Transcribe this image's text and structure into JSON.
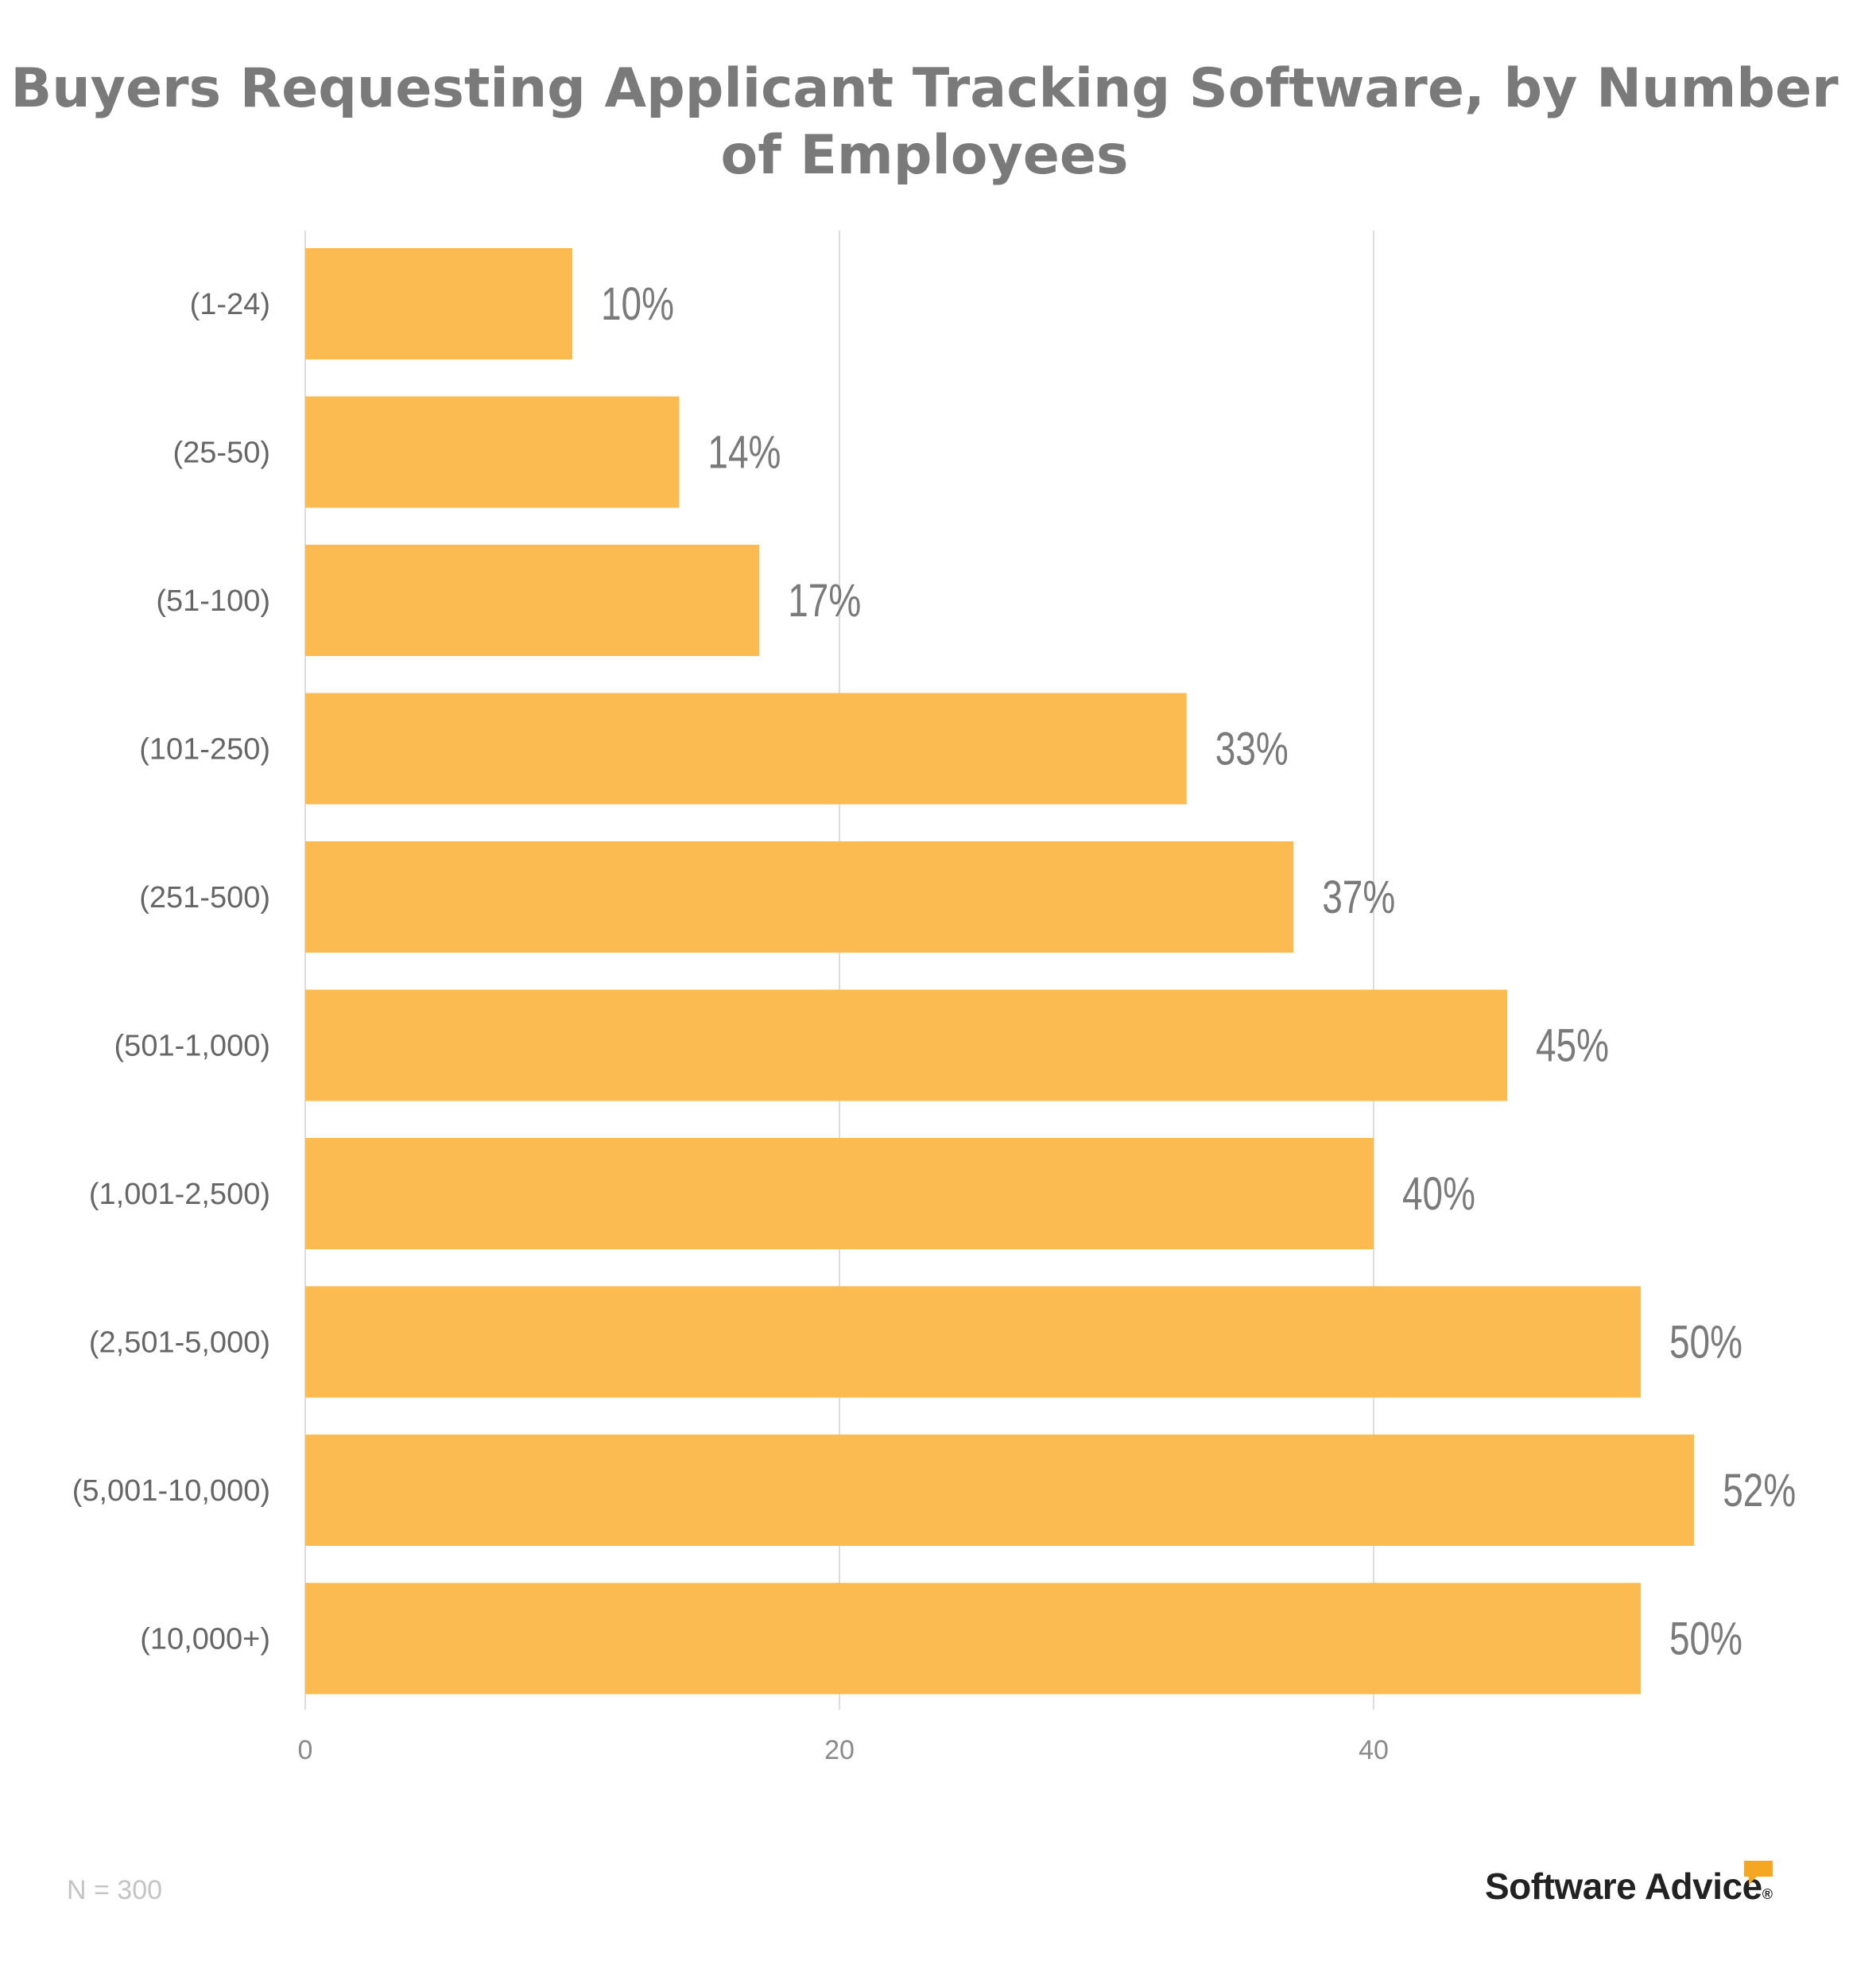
{
  "chart_data": {
    "type": "bar",
    "orientation": "horizontal",
    "title": "Buyers Requesting Applicant Tracking Software, by Number of Employees",
    "categories": [
      "(1-24)",
      "(25-50)",
      "(51-100)",
      "(101-250)",
      "(251-500)",
      "(501-1,000)",
      "(1,001-2,500)",
      "(2,501-5,000)",
      "(5,001-10,000)",
      "(10,000+)"
    ],
    "values": [
      10,
      14,
      17,
      33,
      37,
      45,
      40,
      50,
      52,
      50
    ],
    "value_labels": [
      "10%",
      "14%",
      "17%",
      "33%",
      "37%",
      "45%",
      "40%",
      "50%",
      "52%",
      "50%"
    ],
    "xticks": [
      "0",
      "20",
      "40"
    ],
    "xlim": [
      0,
      55
    ],
    "grid": true,
    "bar_color": "#fbbb51",
    "note": "N = 300"
  },
  "brand": {
    "name": "Software Advice",
    "registered": "®",
    "icon": "speech-bubble-icon",
    "icon_color": "#f5a623"
  }
}
